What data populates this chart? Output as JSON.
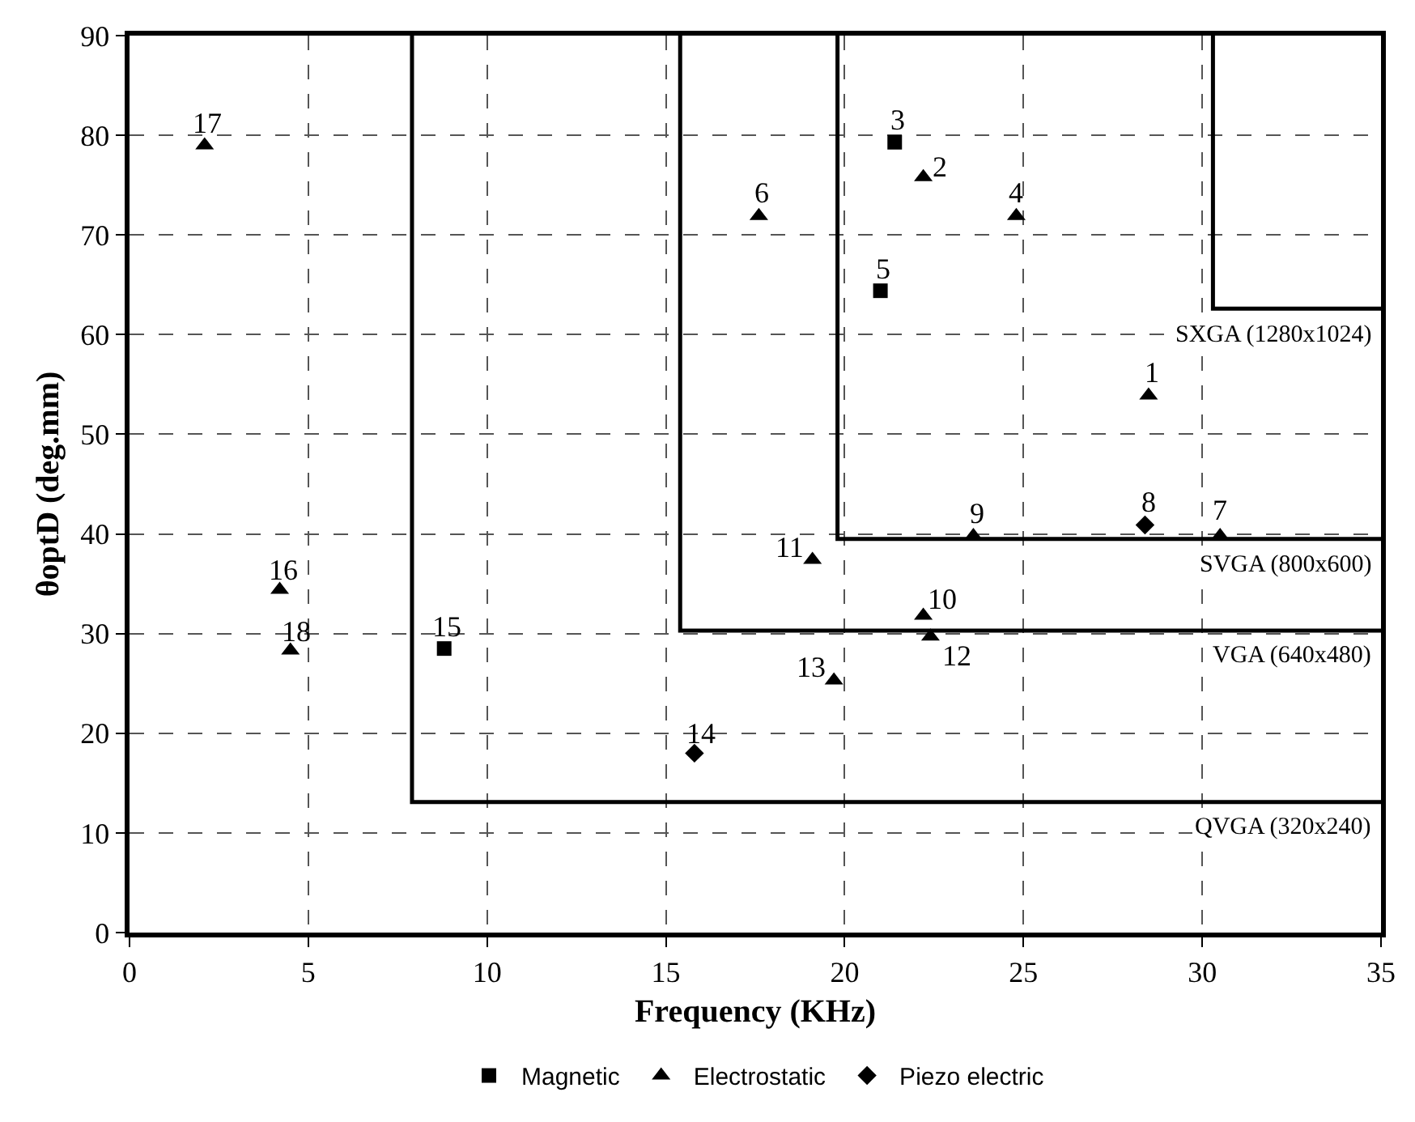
{
  "chart_data": {
    "type": "scatter",
    "xlabel": "Frequency (KHz)",
    "ylabel": "θoptD (deg.mm)",
    "xlim": [
      0,
      35
    ],
    "xticks": [
      0,
      5,
      10,
      15,
      20,
      25,
      30,
      35
    ],
    "ylim": [
      0,
      90
    ],
    "yticks": [
      0,
      10,
      20,
      30,
      40,
      50,
      60,
      70,
      80,
      90
    ],
    "grid": true,
    "legend": "bottom",
    "series": [
      {
        "name": "Magnetic",
        "color": "#000000",
        "marker": "square",
        "x": [
          21.4,
          21.0,
          8.8
        ],
        "values": [
          79.3,
          64.4,
          28.5
        ]
      },
      {
        "name": "Electrostatic",
        "color": "#000000",
        "marker": "triangle",
        "x": [
          28.5,
          22.2,
          24.8,
          17.6,
          30.5,
          23.6,
          22.2,
          19.1,
          22.4,
          19.7,
          4.2,
          2.1,
          4.5
        ],
        "values": [
          53.9,
          75.8,
          71.9,
          71.9,
          39.8,
          39.8,
          31.8,
          37.4,
          29.7,
          25.3,
          34.4,
          79.0,
          28.3
        ]
      },
      {
        "name": "Piezo electric",
        "color": "#000000",
        "marker": "diamond",
        "x": [
          28.4,
          15.8
        ],
        "values": [
          40.9,
          18.0
        ]
      },
      {
        "type": "line",
        "name": "SXGA (1280x1024)",
        "color": "#000000",
        "x": [
          30.3,
          30.3,
          35
        ],
        "values": [
          90,
          62.6,
          62.6
        ]
      },
      {
        "type": "line",
        "name": "SVGA (800x600)",
        "color": "#000000",
        "x": [
          19.8,
          19.8,
          35
        ],
        "values": [
          90,
          39.5,
          39.5
        ]
      },
      {
        "type": "line",
        "name": "VGA (640x480)",
        "color": "#000000",
        "x": [
          15.4,
          15.4,
          35
        ],
        "values": [
          90,
          30.3,
          30.3
        ]
      },
      {
        "type": "line",
        "name": "QVGA (320x240)",
        "color": "#000000",
        "x": [
          7.9,
          7.9,
          35
        ],
        "values": [
          90,
          13.1,
          13.1
        ]
      }
    ],
    "annotations": [
      {
        "text": "1",
        "x": 28.5,
        "y": 53.9
      },
      {
        "text": "2",
        "x": 22.2,
        "y": 75.8
      },
      {
        "text": "3",
        "x": 21.4,
        "y": 79.3
      },
      {
        "text": "4",
        "x": 24.8,
        "y": 71.9
      },
      {
        "text": "5",
        "x": 21.0,
        "y": 64.4
      },
      {
        "text": "6",
        "x": 17.6,
        "y": 71.9
      },
      {
        "text": "7",
        "x": 30.5,
        "y": 39.8
      },
      {
        "text": "8",
        "x": 28.4,
        "y": 40.9
      },
      {
        "text": "9",
        "x": 23.6,
        "y": 39.8
      },
      {
        "text": "10",
        "x": 22.2,
        "y": 31.8
      },
      {
        "text": "11",
        "x": 19.1,
        "y": 37.4
      },
      {
        "text": "12",
        "x": 22.4,
        "y": 29.7
      },
      {
        "text": "13",
        "x": 19.7,
        "y": 25.3
      },
      {
        "text": "14",
        "x": 15.8,
        "y": 18.0
      },
      {
        "text": "15",
        "x": 8.8,
        "y": 28.5
      },
      {
        "text": "16",
        "x": 4.2,
        "y": 34.4
      },
      {
        "text": "17",
        "x": 2.1,
        "y": 79.0
      },
      {
        "text": "18",
        "x": 4.5,
        "y": 28.3
      }
    ]
  }
}
